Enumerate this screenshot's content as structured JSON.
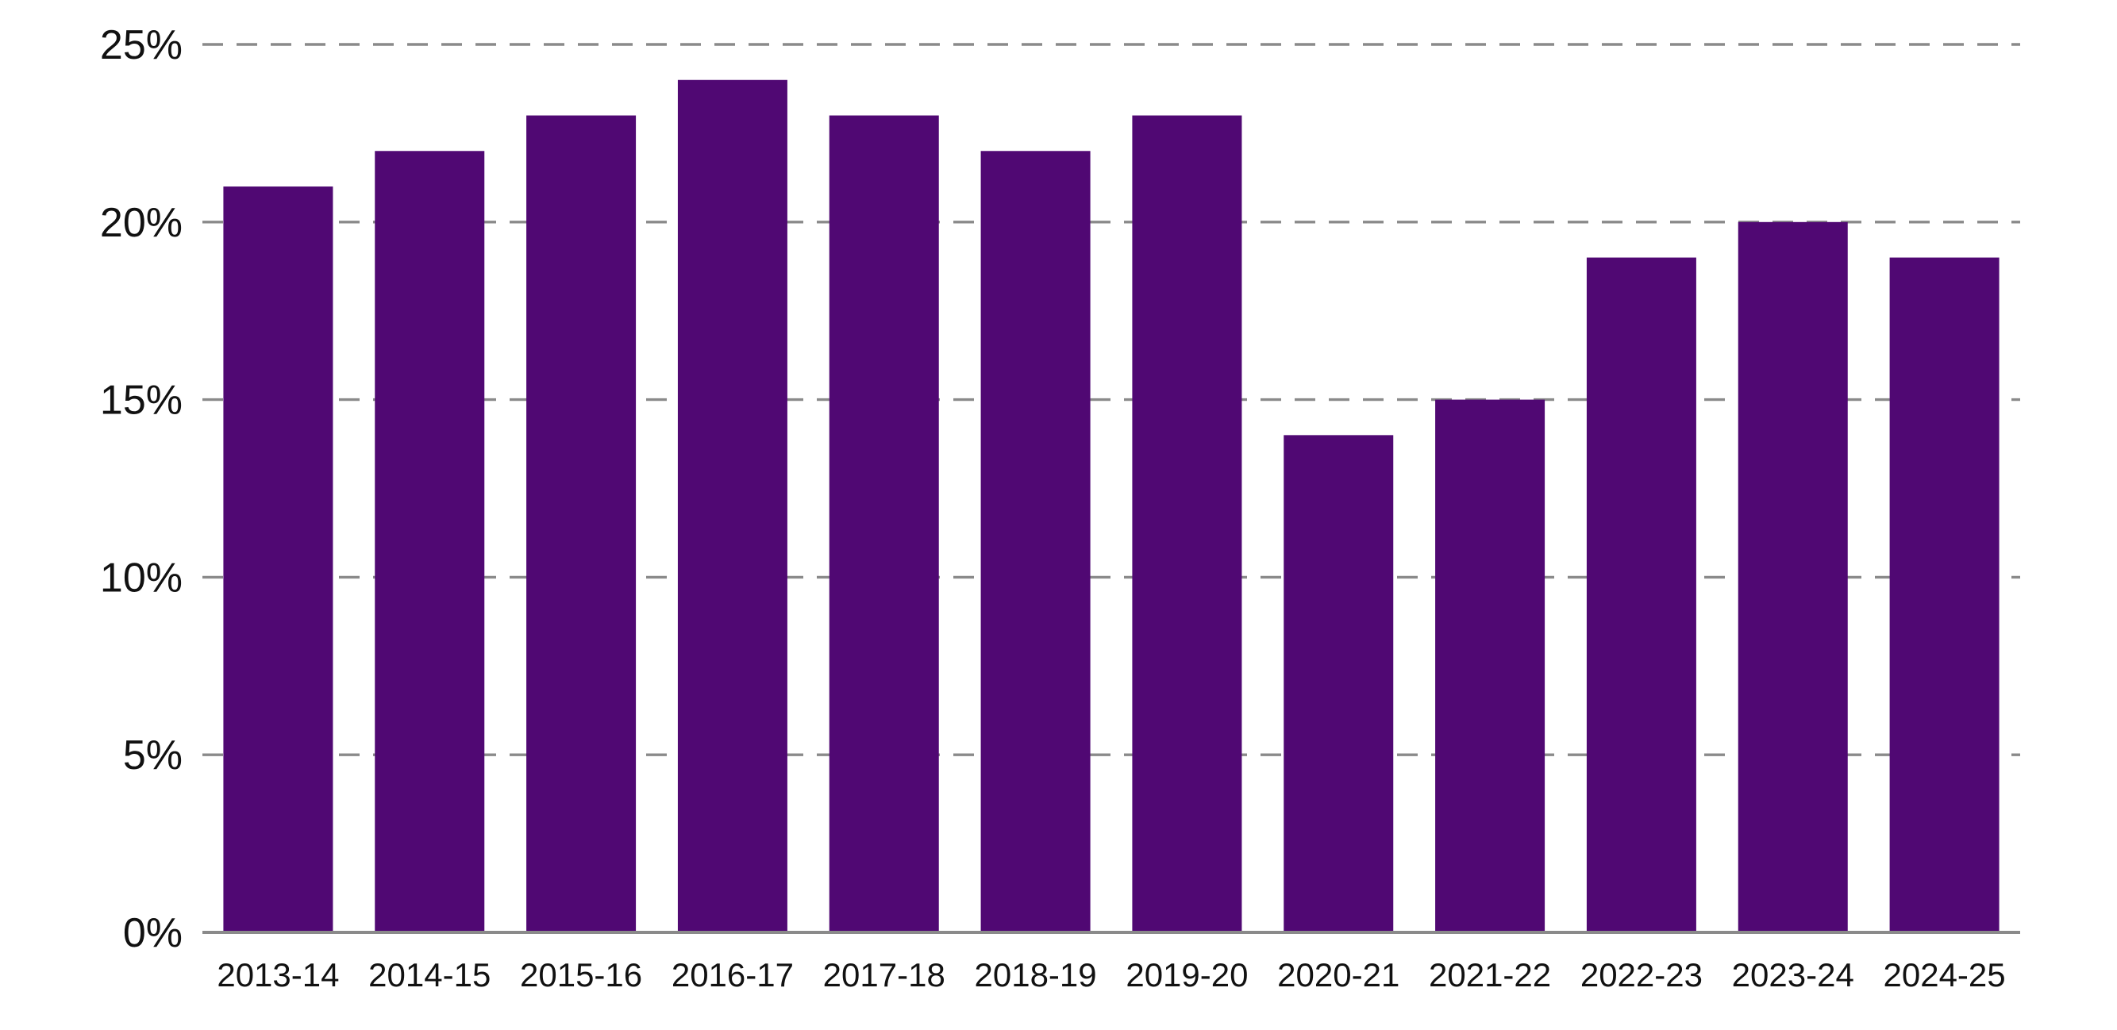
{
  "chart_data": {
    "type": "bar",
    "categories": [
      "2013-14",
      "2014-15",
      "2015-16",
      "2016-17",
      "2017-18",
      "2018-19",
      "2019-20",
      "2020-21",
      "2021-22",
      "2022-23",
      "2023-24",
      "2024-25"
    ],
    "series": [
      {
        "values": [
          21,
          22,
          23,
          24,
          23,
          22,
          23,
          14,
          15,
          19,
          20,
          19
        ],
        "color": "#500873"
      }
    ],
    "title": "",
    "xlabel": "",
    "ylabel": "",
    "ylim": [
      0,
      25
    ],
    "yticks": [
      0,
      5,
      10,
      15,
      20,
      25
    ],
    "ytick_labels": [
      "0%",
      "5%",
      "10%",
      "15%",
      "20%",
      "25%"
    ],
    "grid": true,
    "legend": "none"
  }
}
